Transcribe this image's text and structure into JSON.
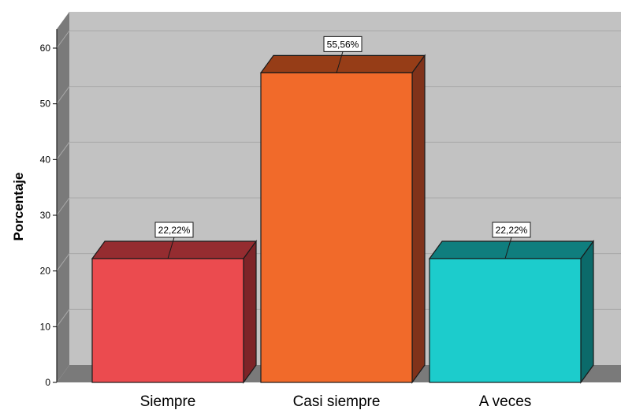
{
  "chart_data": {
    "type": "bar",
    "categories": [
      "Siempre",
      "Casi siempre",
      "A veces"
    ],
    "values": [
      22.22,
      55.56,
      22.22
    ],
    "data_labels": [
      "22,22%",
      "55,56%",
      "22,22%"
    ],
    "title": "",
    "xlabel": "",
    "ylabel": "Porcentaje",
    "ylim": [
      0,
      60
    ],
    "yticks": [
      "0",
      "10",
      "20",
      "30",
      "40",
      "50",
      "60"
    ],
    "grid": true,
    "style": "3d",
    "colors": {
      "bars": [
        "#eb4b4f",
        "#f16a2a",
        "#1ccccc"
      ],
      "bars_top": [
        "#952c30",
        "#963d17",
        "#0f7e7e"
      ],
      "bars_side": [
        "#7d2428",
        "#80321a",
        "#0b6a6a"
      ],
      "plot_background": "#c2c2c2",
      "wall_side": "#7a7a7a",
      "floor": "#7a7a7a",
      "gridline": "#a9a9a9"
    }
  }
}
